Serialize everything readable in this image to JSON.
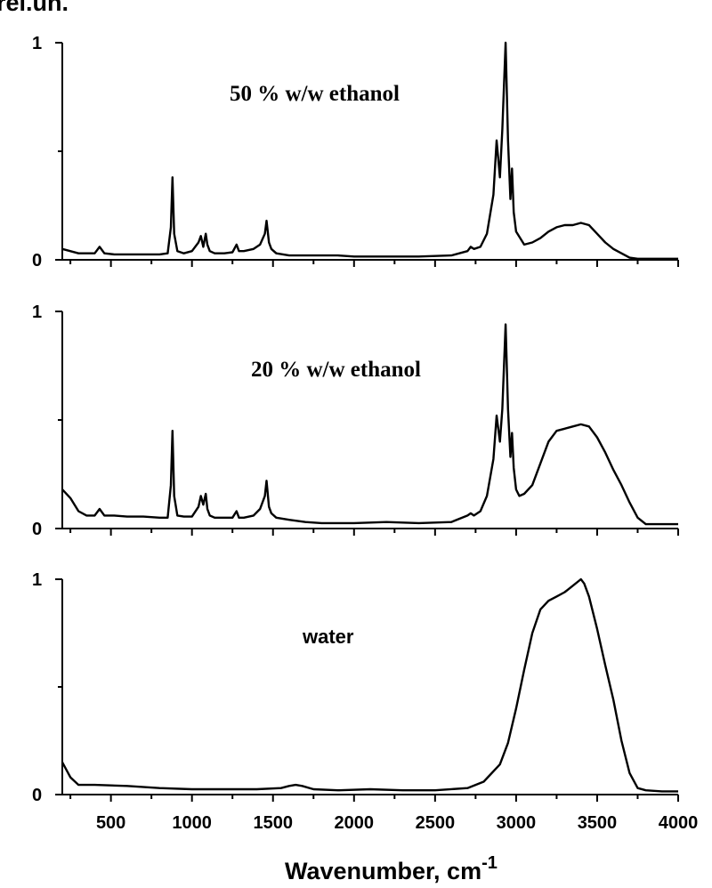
{
  "top_label": "rel.un.",
  "x_axis_title": "Wavenumber, cm",
  "x_axis_exponent": "-1",
  "x_ticks": [
    {
      "value": 500,
      "label": "500"
    },
    {
      "value": 1000,
      "label": "1000"
    },
    {
      "value": 1500,
      "label": "1500"
    },
    {
      "value": 2000,
      "label": "2000"
    },
    {
      "value": 2500,
      "label": "2500"
    },
    {
      "value": 3000,
      "label": "3000"
    },
    {
      "value": 3500,
      "label": "3500"
    },
    {
      "value": 4000,
      "label": "4000"
    }
  ],
  "chart_data": [
    {
      "type": "line",
      "label": "50 % w/w ethanol",
      "xlim": [
        200,
        4000
      ],
      "ylim": [
        0,
        1
      ],
      "y_ticks": [
        {
          "value": 0,
          "label": "0"
        },
        {
          "value": 1,
          "label": "1"
        }
      ],
      "series": [
        {
          "x": [
            200,
            300,
            400,
            430,
            460,
            520,
            600,
            700,
            800,
            850,
            870,
            880,
            890,
            910,
            950,
            1000,
            1040,
            1055,
            1070,
            1085,
            1095,
            1110,
            1140,
            1200,
            1250,
            1275,
            1290,
            1320,
            1380,
            1420,
            1450,
            1460,
            1475,
            1490,
            1520,
            1600,
            1700,
            1800,
            1900,
            2000,
            2200,
            2400,
            2600,
            2700,
            2720,
            2740,
            2780,
            2820,
            2860,
            2880,
            2900,
            2915,
            2935,
            2950,
            2965,
            2975,
            2985,
            3000,
            3050,
            3100,
            3150,
            3200,
            3250,
            3300,
            3350,
            3400,
            3450,
            3500,
            3550,
            3600,
            3650,
            3700,
            3750,
            3800,
            3900,
            4000
          ],
          "y": [
            0.05,
            0.03,
            0.03,
            0.06,
            0.03,
            0.025,
            0.025,
            0.025,
            0.025,
            0.03,
            0.15,
            0.38,
            0.12,
            0.04,
            0.03,
            0.04,
            0.08,
            0.11,
            0.06,
            0.12,
            0.07,
            0.04,
            0.03,
            0.03,
            0.035,
            0.07,
            0.04,
            0.04,
            0.05,
            0.07,
            0.12,
            0.18,
            0.08,
            0.05,
            0.03,
            0.02,
            0.02,
            0.02,
            0.02,
            0.015,
            0.015,
            0.015,
            0.02,
            0.04,
            0.06,
            0.05,
            0.06,
            0.12,
            0.3,
            0.55,
            0.38,
            0.6,
            1.0,
            0.55,
            0.28,
            0.42,
            0.22,
            0.13,
            0.07,
            0.08,
            0.1,
            0.13,
            0.15,
            0.16,
            0.16,
            0.17,
            0.16,
            0.12,
            0.08,
            0.05,
            0.03,
            0.01,
            0.005,
            0.005,
            0.005,
            0.005
          ]
        }
      ]
    },
    {
      "type": "line",
      "label": "20 % w/w ethanol",
      "xlim": [
        200,
        4000
      ],
      "ylim": [
        0,
        1
      ],
      "y_ticks": [
        {
          "value": 0,
          "label": "0"
        },
        {
          "value": 1,
          "label": "1"
        }
      ],
      "series": [
        {
          "x": [
            200,
            250,
            300,
            350,
            400,
            430,
            460,
            520,
            600,
            700,
            800,
            850,
            870,
            880,
            890,
            910,
            950,
            1000,
            1040,
            1055,
            1070,
            1085,
            1095,
            1110,
            1140,
            1200,
            1250,
            1275,
            1290,
            1320,
            1380,
            1420,
            1450,
            1460,
            1475,
            1490,
            1520,
            1600,
            1700,
            1800,
            1900,
            2000,
            2200,
            2400,
            2600,
            2700,
            2720,
            2740,
            2780,
            2820,
            2860,
            2880,
            2900,
            2915,
            2935,
            2950,
            2965,
            2975,
            2985,
            3000,
            3020,
            3050,
            3100,
            3150,
            3200,
            3250,
            3300,
            3350,
            3400,
            3450,
            3500,
            3550,
            3600,
            3650,
            3700,
            3750,
            3800,
            3900,
            4000
          ],
          "y": [
            0.18,
            0.14,
            0.08,
            0.06,
            0.06,
            0.09,
            0.06,
            0.06,
            0.055,
            0.055,
            0.05,
            0.05,
            0.2,
            0.45,
            0.15,
            0.06,
            0.055,
            0.055,
            0.1,
            0.15,
            0.11,
            0.16,
            0.09,
            0.06,
            0.05,
            0.05,
            0.05,
            0.08,
            0.05,
            0.05,
            0.06,
            0.09,
            0.15,
            0.22,
            0.1,
            0.07,
            0.05,
            0.04,
            0.03,
            0.025,
            0.025,
            0.025,
            0.03,
            0.025,
            0.03,
            0.06,
            0.07,
            0.06,
            0.08,
            0.15,
            0.32,
            0.52,
            0.4,
            0.55,
            0.94,
            0.55,
            0.33,
            0.44,
            0.28,
            0.18,
            0.15,
            0.16,
            0.2,
            0.3,
            0.4,
            0.45,
            0.46,
            0.47,
            0.48,
            0.47,
            0.42,
            0.35,
            0.27,
            0.2,
            0.12,
            0.05,
            0.02,
            0.02,
            0.02
          ]
        }
      ]
    },
    {
      "type": "line",
      "label": "water",
      "xlim": [
        200,
        4000
      ],
      "ylim": [
        0,
        1
      ],
      "y_ticks": [
        {
          "value": 0,
          "label": "0"
        },
        {
          "value": 1,
          "label": "1"
        }
      ],
      "series": [
        {
          "x": [
            200,
            250,
            300,
            400,
            600,
            800,
            1000,
            1200,
            1400,
            1550,
            1600,
            1640,
            1680,
            1750,
            1900,
            2100,
            2300,
            2500,
            2700,
            2800,
            2900,
            2950,
            3000,
            3050,
            3100,
            3150,
            3200,
            3250,
            3300,
            3350,
            3400,
            3420,
            3450,
            3500,
            3550,
            3600,
            3650,
            3700,
            3750,
            3800,
            3900,
            4000
          ],
          "y": [
            0.15,
            0.08,
            0.045,
            0.045,
            0.04,
            0.03,
            0.025,
            0.025,
            0.025,
            0.03,
            0.04,
            0.045,
            0.04,
            0.025,
            0.02,
            0.025,
            0.02,
            0.02,
            0.03,
            0.06,
            0.14,
            0.24,
            0.4,
            0.58,
            0.75,
            0.86,
            0.9,
            0.92,
            0.94,
            0.97,
            1.0,
            0.98,
            0.92,
            0.77,
            0.6,
            0.44,
            0.25,
            0.1,
            0.03,
            0.02,
            0.015,
            0.015
          ]
        }
      ]
    }
  ]
}
